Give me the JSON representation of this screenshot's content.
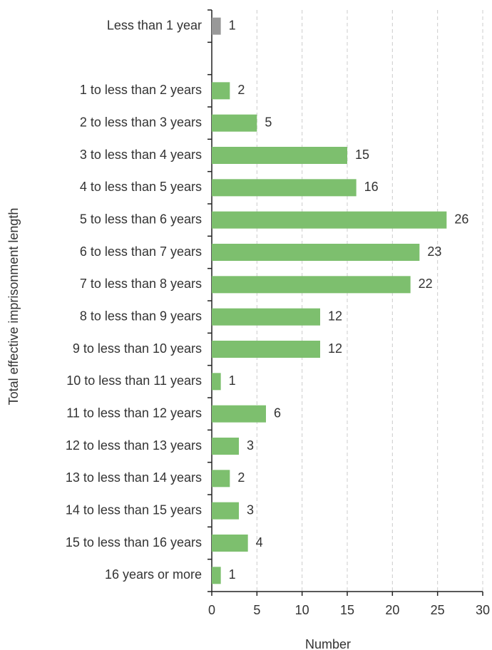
{
  "chart_data": {
    "type": "bar",
    "orientation": "horizontal",
    "categories": [
      "Less than 1 year",
      null,
      "1 to less than 2 years",
      "2 to less than 3 years",
      "3 to less than 4 years",
      "4 to less than 5 years",
      "5 to less than 6 years",
      "6 to less than 7 years",
      "7 to less than 8 years",
      "8 to less than 9 years",
      "9 to less than 10 years",
      "10 to less than 11 years",
      "11 to less than 12 years",
      "12 to less than 13 years",
      "13 to less than 14 years",
      "14 to less than 15 years",
      "15 to less than 16 years",
      "16 years or more"
    ],
    "values": [
      1,
      null,
      2,
      5,
      15,
      16,
      26,
      23,
      22,
      12,
      12,
      1,
      6,
      3,
      2,
      3,
      4,
      1
    ],
    "colors": [
      "#999999",
      null,
      "#7dbf6e",
      "#7dbf6e",
      "#7dbf6e",
      "#7dbf6e",
      "#7dbf6e",
      "#7dbf6e",
      "#7dbf6e",
      "#7dbf6e",
      "#7dbf6e",
      "#7dbf6e",
      "#7dbf6e",
      "#7dbf6e",
      "#7dbf6e",
      "#7dbf6e",
      "#7dbf6e",
      "#7dbf6e"
    ],
    "xlabel": "Number",
    "ylabel": "Total effective imprisonment length",
    "xlim": [
      0,
      30
    ],
    "xticks": [
      0,
      5,
      10,
      15,
      20,
      25,
      30
    ],
    "grid": true
  }
}
